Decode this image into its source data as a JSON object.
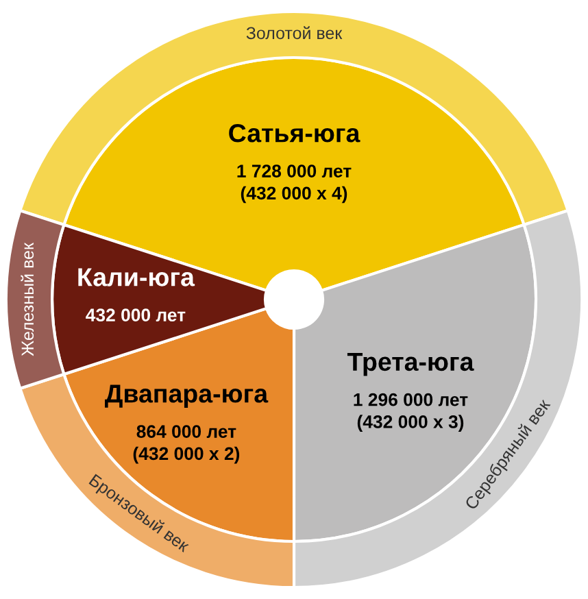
{
  "chart_data": {
    "type": "donut",
    "categories": [
      "Сатья-юга",
      "Трета-юга",
      "Двапара-юга",
      "Кали-юга"
    ],
    "series": [
      {
        "values": [
          1728000,
          1296000,
          864000,
          432000
        ],
        "colors": [
          "#f2c500",
          "#bdbcbc",
          "#e8892b",
          "#6b1a0e"
        ],
        "value_labels": [
          "1 728 000 лет\n(432 000 x 4)",
          "1 296 000 лет\n(432 000 x 3)",
          "864 000 лет\n(432 000 x 2)",
          "432 000 лет"
        ]
      },
      {
        "values": [
          40,
          30,
          20,
          10
        ],
        "colors": [
          "#f5d64f",
          "#d0d0d0",
          "#efad68",
          "#975d55"
        ],
        "value_labels": [
          "Золотой век",
          "Серебряный век",
          "Бронзовый век",
          "Железный век"
        ]
      }
    ]
  }
}
